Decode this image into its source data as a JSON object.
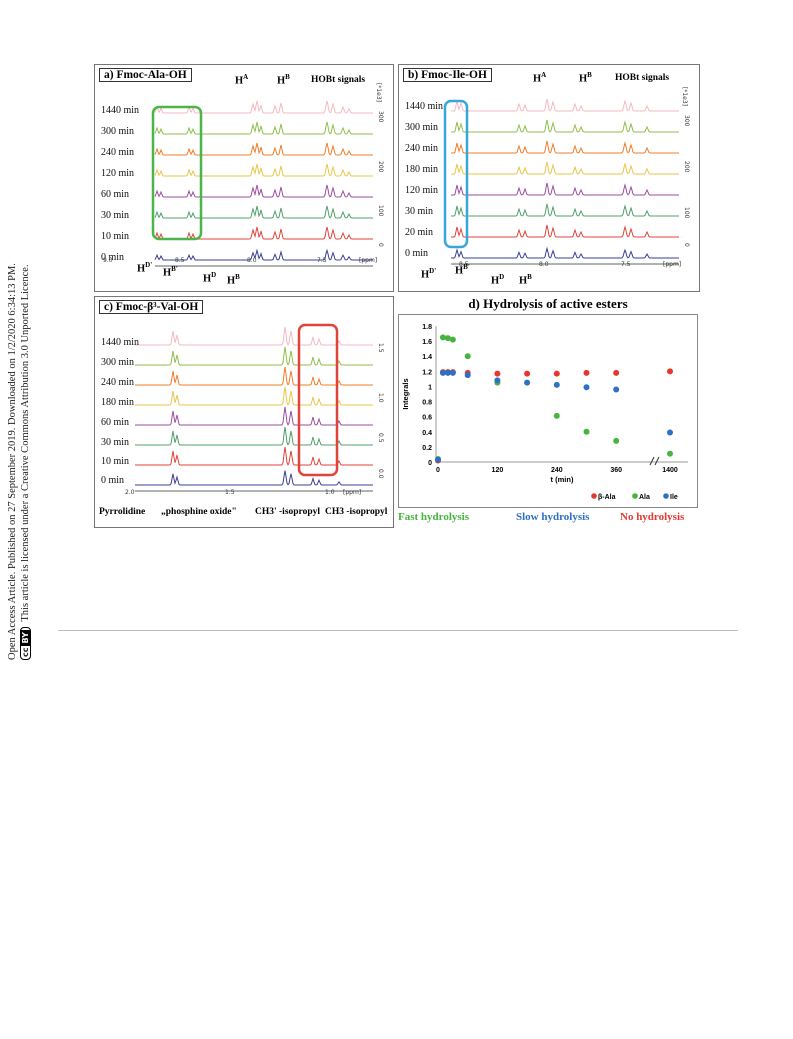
{
  "side_note": {
    "line1": "Open Access Article. Published on 27 September 2019. Downloaded on 1/2/2020 6:34:13 PM.",
    "line2": "This article is licensed under a Creative Commons Attribution 3.0 Unported Licence.",
    "cc_label": "cc",
    "by_label": "BY"
  },
  "panel_a": {
    "title": "a) Fmoc-Ala-OH",
    "times": [
      "1440 min",
      "300 min",
      "240 min",
      "120 min",
      "60 min",
      "30 min",
      "10 min",
      "0 min"
    ],
    "labels": {
      "hA": "H",
      "hA_sup": "A",
      "hB": "H",
      "hB_sup": "B",
      "hobt": "HOBt signals",
      "hD1": "H",
      "hD1_sup": "D'",
      "hB1": "H",
      "hB1_sup": "B'",
      "hD": "H",
      "hD_sup": "D",
      "hB2": "H",
      "hB2_sup": "B"
    },
    "ppm_ticks": [
      "9.0",
      "8.5",
      "8.0",
      "7.5"
    ],
    "ppm_unit": "[ppm]",
    "int_unit": "[*1e3]",
    "int_ticks": [
      "300",
      "200",
      "100",
      "0"
    ],
    "box_color": "#4bb549"
  },
  "panel_b": {
    "title": "b) Fmoc-Ile-OH",
    "times": [
      "1440 min",
      "300 min",
      "240 min",
      "180 min",
      "120 min",
      "30 min",
      "20 min",
      "0 min"
    ],
    "labels": {
      "hA": "H",
      "hA_sup": "A",
      "hB": "H",
      "hB_sup": "B",
      "hobt": "HOBt signals",
      "hD1": "H",
      "hD1_sup": "D'",
      "hB1": "H",
      "hB1_sup": "B'",
      "hD": "H",
      "hD_sup": "D",
      "hB2": "H",
      "hB2_sup": "B"
    },
    "ppm_ticks": [
      "8.5",
      "8.0",
      "7.5"
    ],
    "ppm_unit": "[ppm]",
    "int_unit": "[*1e3]",
    "int_ticks": [
      "300",
      "200",
      "100",
      "0"
    ],
    "box_color": "#36a8d8"
  },
  "panel_c": {
    "title": "c) Fmoc-β³-Val-OH",
    "times": [
      "1440 min",
      "300 min",
      "240 min",
      "180 min",
      "60 min",
      "30 min",
      "10 min",
      "0 min"
    ],
    "labels": {
      "pyr": "Pyrrolidine",
      "po": "„phosphine oxide\"",
      "ch3a": "CH3' -isopropyl",
      "ch3b": "CH3 -isopropyl"
    },
    "ppm_ticks": [
      "2.0",
      "1.5",
      "1.0"
    ],
    "ppm_unit": "[ppm]",
    "int_ticks": [
      "1.5",
      "1.0",
      "0.5",
      "0.0"
    ],
    "box_color": "#e0433a"
  },
  "panel_d": {
    "title": "d) Hydrolysis of active esters",
    "footer": {
      "fast": "Fast hydrolysis",
      "slow": "Slow hydrolysis",
      "none": "No hydrolysis"
    },
    "colors": {
      "fast": "#46b43e",
      "slow": "#2f6fc4",
      "none": "#e8362e"
    }
  },
  "chart_data": {
    "type": "scatter",
    "title": "d) Hydrolysis of active esters",
    "xlabel": "t (min)",
    "ylabel": "Integrals",
    "x_ticks": [
      "0",
      "120",
      "240",
      "360",
      "1400"
    ],
    "y_ticks": [
      "0",
      "0.2",
      "0.4",
      "0.6",
      "0.8",
      "1",
      "1.2",
      "1.4",
      "1.6",
      "1.8"
    ],
    "ylim": [
      0,
      1.8
    ],
    "axis_break": "between 360 and 1400",
    "legend_position": "bottom-right",
    "series": [
      {
        "name": "β-Ala",
        "color": "#e8362e",
        "points": [
          [
            0,
            0.02
          ],
          [
            10,
            1.19
          ],
          [
            20,
            1.19
          ],
          [
            30,
            1.19
          ],
          [
            60,
            1.18
          ],
          [
            120,
            1.17
          ],
          [
            180,
            1.17
          ],
          [
            240,
            1.17
          ],
          [
            300,
            1.18
          ],
          [
            360,
            1.18
          ],
          [
            1440,
            1.2
          ]
        ]
      },
      {
        "name": "Ala",
        "color": "#46b43e",
        "points": [
          [
            0,
            0.04
          ],
          [
            10,
            1.65
          ],
          [
            20,
            1.64
          ],
          [
            30,
            1.62
          ],
          [
            60,
            1.4
          ],
          [
            120,
            1.05
          ],
          [
            240,
            0.61
          ],
          [
            300,
            0.4
          ],
          [
            360,
            0.28
          ],
          [
            1440,
            0.11
          ]
        ]
      },
      {
        "name": "Ile",
        "color": "#2f6fc4",
        "points": [
          [
            0,
            0.03
          ],
          [
            10,
            1.18
          ],
          [
            20,
            1.18
          ],
          [
            30,
            1.18
          ],
          [
            60,
            1.15
          ],
          [
            120,
            1.08
          ],
          [
            180,
            1.05
          ],
          [
            240,
            1.02
          ],
          [
            300,
            0.99
          ],
          [
            360,
            0.96
          ],
          [
            1440,
            0.39
          ]
        ]
      }
    ]
  }
}
